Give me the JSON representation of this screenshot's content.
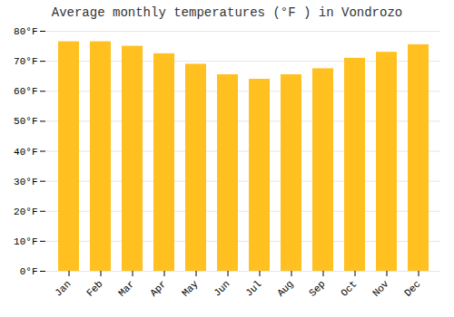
{
  "chart_data": {
    "type": "bar",
    "title": "Average monthly temperatures (°F ) in Vondrozo",
    "categories": [
      "Jan",
      "Feb",
      "Mar",
      "Apr",
      "May",
      "Jun",
      "Jul",
      "Aug",
      "Sep",
      "Oct",
      "Nov",
      "Dec"
    ],
    "values": [
      76.5,
      76.5,
      75.0,
      72.5,
      69.0,
      65.5,
      64.0,
      65.5,
      67.5,
      71.0,
      73.0,
      75.5
    ],
    "color": "#FFC020",
    "ylim": [
      0,
      80
    ],
    "yticks": [
      {
        "value": 0,
        "label": "0°F"
      },
      {
        "value": 10,
        "label": "10°F"
      },
      {
        "value": 20,
        "label": "20°F"
      },
      {
        "value": 30,
        "label": "30°F"
      },
      {
        "value": 40,
        "label": "40°F"
      },
      {
        "value": 50,
        "label": "50°F"
      },
      {
        "value": 60,
        "label": "60°F"
      },
      {
        "value": 70,
        "label": "70°F"
      },
      {
        "value": 80,
        "label": "80°F"
      }
    ],
    "grid": true
  }
}
